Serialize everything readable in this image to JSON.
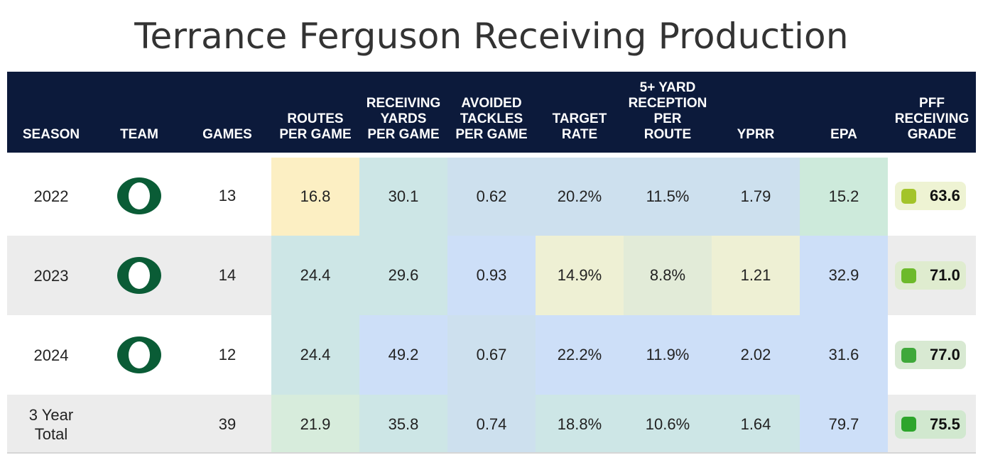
{
  "title": "Terrance Ferguson Receiving Production",
  "columns": [
    "SEASON",
    "TEAM",
    "GAMES",
    "ROUTES\nPER GAME",
    "RECEIVING\nYARDS\nPER GAME",
    "AVOIDED\nTACKLES\nPER GAME",
    "TARGET\nRATE",
    "5+ YARD\nRECEPTION\nPER\nROUTE",
    "YPRR",
    "EPA",
    "PFF\nRECEIVING\nGRADE"
  ],
  "team_logo": {
    "letter": "O",
    "color": "#0a5c36"
  },
  "rows": [
    {
      "season": "2022",
      "has_logo": true,
      "games": "13",
      "cells": [
        "16.8",
        "30.1",
        "0.62",
        "20.2%",
        "11.5%",
        "1.79",
        "15.2"
      ],
      "cell_colors": [
        "#fcefc3",
        "#cde6e6",
        "#cde0ee",
        "#cde0ee",
        "#cde0ee",
        "#cde0ee",
        "#cdeadb"
      ],
      "grade": "63.6",
      "grade_color": "#a3c42a",
      "grade_bg": "#eef3d3"
    },
    {
      "season": "2023",
      "has_logo": true,
      "games": "14",
      "cells": [
        "24.4",
        "29.6",
        "0.93",
        "14.9%",
        "8.8%",
        "1.21",
        "32.9"
      ],
      "cell_colors": [
        "#cde6e6",
        "#cde6e6",
        "#cddff8",
        "#eef0d4",
        "#e2ebd8",
        "#eef0d4",
        "#cddff8"
      ],
      "grade": "71.0",
      "grade_color": "#6dba2b",
      "grade_bg": "#dfeccf"
    },
    {
      "season": "2024",
      "has_logo": true,
      "games": "12",
      "cells": [
        "24.4",
        "49.2",
        "0.67",
        "22.2%",
        "11.9%",
        "2.02",
        "31.6"
      ],
      "cell_colors": [
        "#cde6e6",
        "#cddff8",
        "#cde0ee",
        "#cddff8",
        "#cddff8",
        "#cddff8",
        "#cddff8"
      ],
      "grade": "77.0",
      "grade_color": "#3fa83a",
      "grade_bg": "#d8e9d2"
    },
    {
      "season": "3 Year\nTotal",
      "has_logo": false,
      "games": "39",
      "cells": [
        "21.9",
        "35.8",
        "0.74",
        "18.8%",
        "10.6%",
        "1.64",
        "79.7"
      ],
      "cell_colors": [
        "#d7ecdc",
        "#cde6e6",
        "#cde0ee",
        "#cde6e6",
        "#cde6e6",
        "#cde6e6",
        "#cddff8"
      ],
      "grade": "75.5",
      "grade_color": "#2da52b",
      "grade_bg": "#d1e8cf"
    }
  ],
  "row_backgrounds": [
    "#ffffff",
    "#ececec",
    "#ffffff",
    "#ececec"
  ],
  "chart_data": {
    "type": "table",
    "title": "Terrance Ferguson Receiving Production",
    "headers": [
      "SEASON",
      "TEAM",
      "GAMES",
      "ROUTES PER GAME",
      "RECEIVING YARDS PER GAME",
      "AVOIDED TACKLES PER GAME",
      "TARGET RATE",
      "5+ YARD RECEPTION PER ROUTE",
      "YPRR",
      "EPA",
      "PFF RECEIVING GRADE"
    ],
    "rows": [
      [
        "2022",
        "Oregon",
        13,
        16.8,
        30.1,
        0.62,
        "20.2%",
        "11.5%",
        1.79,
        15.2,
        63.6
      ],
      [
        "2023",
        "Oregon",
        14,
        24.4,
        29.6,
        0.93,
        "14.9%",
        "8.8%",
        1.21,
        32.9,
        71.0
      ],
      [
        "2024",
        "Oregon",
        12,
        24.4,
        49.2,
        0.67,
        "22.2%",
        "11.9%",
        2.02,
        31.6,
        77.0
      ],
      [
        "3 Year Total",
        "",
        39,
        21.9,
        35.8,
        0.74,
        "18.8%",
        "10.6%",
        1.64,
        79.7,
        75.5
      ]
    ]
  }
}
